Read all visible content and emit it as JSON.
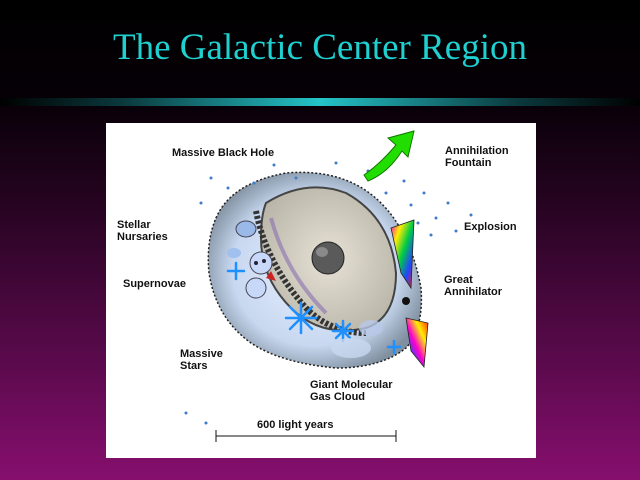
{
  "slide": {
    "title": "The Galactic Center Region"
  },
  "diagram": {
    "labels": {
      "massive_black_hole": "Massive Black Hole",
      "annihilation_fountain": "Annihilation\nFountain",
      "explosion": "Explosion",
      "stellar_nurseries": "Stellar\nNursaries",
      "supernovae": "Supernovae",
      "great_annihilator": "Great\nAnnihilator",
      "massive_stars": "Massive\nStars",
      "giant_molecular_gas_cloud": "Giant Molecular\nGas Cloud"
    },
    "scale_bar": {
      "label": "600 light years"
    },
    "colors": {
      "title": "#1fd0d0",
      "arrow": "#22dd00",
      "black_hole": "#555555",
      "star": "#1e90ff"
    }
  }
}
